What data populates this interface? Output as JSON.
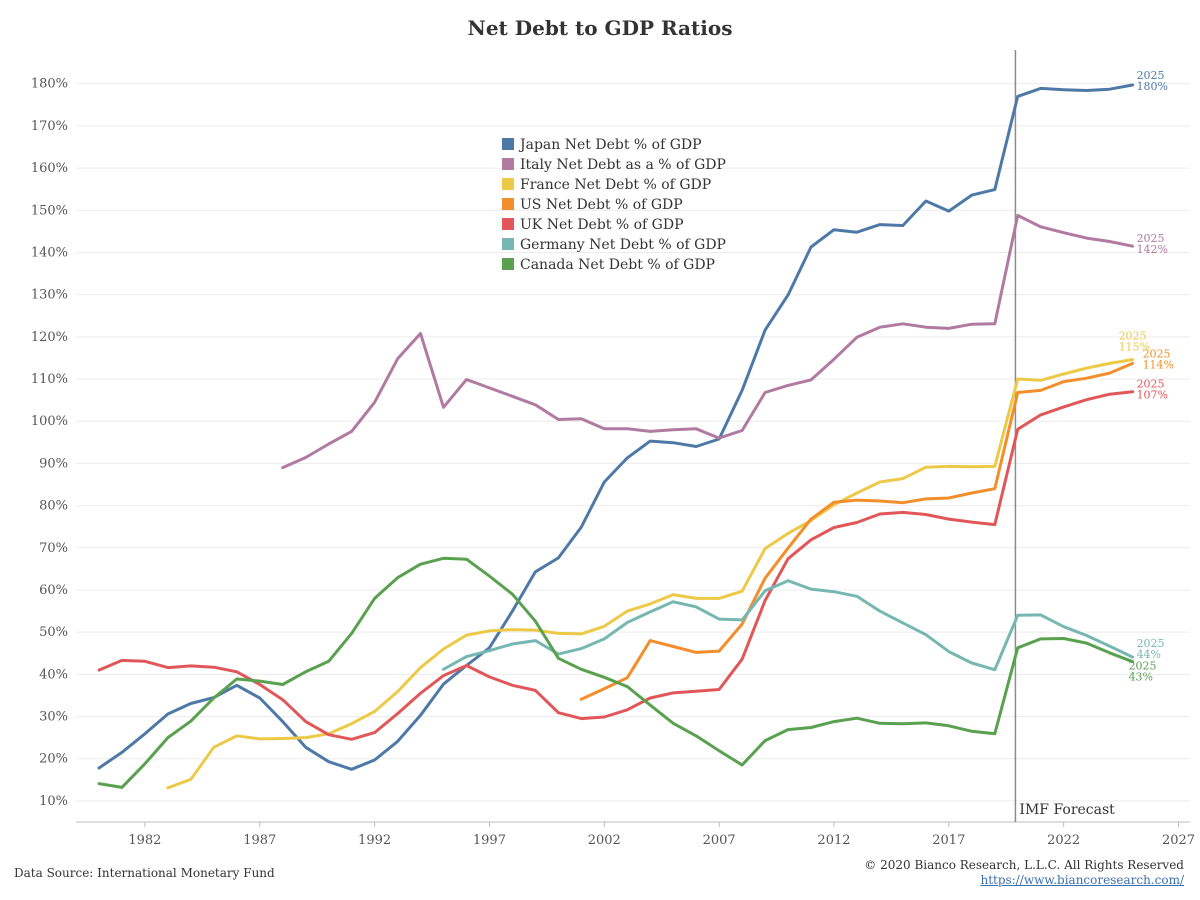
{
  "chart_data": {
    "type": "line",
    "title": "Net Debt to GDP Ratios",
    "xlim": [
      1979,
      2027.5
    ],
    "ylim": [
      5,
      188
    ],
    "y_ticks": [
      10,
      20,
      30,
      40,
      50,
      60,
      70,
      80,
      90,
      100,
      110,
      120,
      130,
      140,
      150,
      160,
      170,
      180
    ],
    "y_tick_labels": [
      "10%",
      "20%",
      "30%",
      "40%",
      "50%",
      "60%",
      "70%",
      "80%",
      "90%",
      "100%",
      "110%",
      "120%",
      "130%",
      "140%",
      "150%",
      "160%",
      "170%",
      "180%"
    ],
    "x_ticks": [
      1982,
      1987,
      1992,
      1997,
      2002,
      2007,
      2012,
      2017,
      2022,
      2027
    ],
    "x_tick_labels": [
      "1982",
      "1987",
      "1992",
      "1997",
      "2002",
      "2007",
      "2012",
      "2017",
      "2022",
      "2027"
    ],
    "grid": "horizontal",
    "legend_position": "top-center",
    "forecast_line_x": 2019.9,
    "forecast_label": "IMF Forecast",
    "series": [
      {
        "name": "Japan Net Debt % of GDP",
        "color": "#4e79a7",
        "end_year": "2025",
        "end_label": "180%",
        "data": [
          [
            1980,
            17.8
          ],
          [
            1981,
            21.5
          ],
          [
            1982,
            25.9
          ],
          [
            1983,
            30.6
          ],
          [
            1984,
            33.1
          ],
          [
            1985,
            34.5
          ],
          [
            1986,
            37.4
          ],
          [
            1987,
            34.4
          ],
          [
            1988,
            28.8
          ],
          [
            1989,
            22.7
          ],
          [
            1990,
            19.3
          ],
          [
            1991,
            17.5
          ],
          [
            1992,
            19.7
          ],
          [
            1993,
            24.1
          ],
          [
            1994,
            30.3
          ],
          [
            1995,
            37.7
          ],
          [
            1996,
            42.1
          ],
          [
            1997,
            46.3
          ],
          [
            1998,
            55.0
          ],
          [
            1999,
            64.3
          ],
          [
            2000,
            67.6
          ],
          [
            2001,
            74.9
          ],
          [
            2002,
            85.6
          ],
          [
            2003,
            91.3
          ],
          [
            2004,
            95.3
          ],
          [
            2005,
            94.9
          ],
          [
            2006,
            94.0
          ],
          [
            2007,
            95.8
          ],
          [
            2008,
            107.3
          ],
          [
            2009,
            121.6
          ],
          [
            2010,
            129.9
          ],
          [
            2011,
            141.3
          ],
          [
            2012,
            145.4
          ],
          [
            2013,
            144.8
          ],
          [
            2014,
            146.6
          ],
          [
            2015,
            146.4
          ],
          [
            2016,
            152.2
          ],
          [
            2017,
            149.8
          ],
          [
            2018,
            153.6
          ],
          [
            2019,
            154.9
          ],
          [
            2020,
            177.0
          ],
          [
            2021,
            178.9
          ],
          [
            2022,
            178.6
          ],
          [
            2023,
            178.4
          ],
          [
            2024,
            178.7
          ],
          [
            2025,
            179.7
          ]
        ]
      },
      {
        "name": "Italy Net Debt as a % of GDP",
        "color": "#b07aa1",
        "end_year": "2025",
        "end_label": "142%",
        "data": [
          [
            1988,
            89.0
          ],
          [
            1989,
            91.4
          ],
          [
            1990,
            94.6
          ],
          [
            1991,
            97.6
          ],
          [
            1992,
            104.5
          ],
          [
            1993,
            114.8
          ],
          [
            1994,
            120.8
          ],
          [
            1995,
            103.3
          ],
          [
            1996,
            109.9
          ],
          [
            1997,
            107.9
          ],
          [
            1998,
            105.9
          ],
          [
            1999,
            103.9
          ],
          [
            2000,
            100.4
          ],
          [
            2001,
            100.6
          ],
          [
            2002,
            98.2
          ],
          [
            2003,
            98.2
          ],
          [
            2004,
            97.6
          ],
          [
            2005,
            98.0
          ],
          [
            2006,
            98.2
          ],
          [
            2007,
            96.0
          ],
          [
            2008,
            97.8
          ],
          [
            2009,
            106.8
          ],
          [
            2010,
            108.5
          ],
          [
            2011,
            109.8
          ],
          [
            2012,
            114.7
          ],
          [
            2013,
            119.9
          ],
          [
            2014,
            122.3
          ],
          [
            2015,
            123.1
          ],
          [
            2016,
            122.3
          ],
          [
            2017,
            122.0
          ],
          [
            2018,
            123.0
          ],
          [
            2019,
            123.1
          ],
          [
            2020,
            148.8
          ],
          [
            2021,
            146.1
          ],
          [
            2022,
            144.7
          ],
          [
            2023,
            143.4
          ],
          [
            2024,
            142.6
          ],
          [
            2025,
            141.5
          ]
        ]
      },
      {
        "name": "France Net Debt % of GDP",
        "color": "#edc948",
        "end_year": "2025",
        "end_label": "115%",
        "data": [
          [
            1983,
            13.1
          ],
          [
            1984,
            15.1
          ],
          [
            1985,
            22.7
          ],
          [
            1986,
            25.4
          ],
          [
            1987,
            24.7
          ],
          [
            1988,
            24.8
          ],
          [
            1989,
            25.0
          ],
          [
            1990,
            25.9
          ],
          [
            1991,
            28.3
          ],
          [
            1992,
            31.2
          ],
          [
            1993,
            35.9
          ],
          [
            1994,
            41.6
          ],
          [
            1995,
            46.0
          ],
          [
            1996,
            49.3
          ],
          [
            1997,
            50.3
          ],
          [
            1998,
            50.6
          ],
          [
            1999,
            50.5
          ],
          [
            2000,
            49.7
          ],
          [
            2001,
            49.6
          ],
          [
            2002,
            51.4
          ],
          [
            2003,
            55.0
          ],
          [
            2004,
            56.7
          ],
          [
            2005,
            58.9
          ],
          [
            2006,
            58.0
          ],
          [
            2007,
            58.0
          ],
          [
            2008,
            59.7
          ],
          [
            2009,
            69.8
          ],
          [
            2010,
            73.4
          ],
          [
            2011,
            76.5
          ],
          [
            2012,
            80.2
          ],
          [
            2013,
            83.0
          ],
          [
            2014,
            85.6
          ],
          [
            2015,
            86.4
          ],
          [
            2016,
            89.1
          ],
          [
            2017,
            89.3
          ],
          [
            2018,
            89.2
          ],
          [
            2019,
            89.3
          ],
          [
            2020,
            110.0
          ],
          [
            2021,
            109.7
          ],
          [
            2022,
            111.2
          ],
          [
            2023,
            112.6
          ],
          [
            2024,
            113.7
          ],
          [
            2025,
            114.6
          ]
        ]
      },
      {
        "name": "US Net Debt % of GDP",
        "color": "#f28e2b",
        "end_year": "2025",
        "end_label": "114%",
        "data": [
          [
            2001,
            34.1
          ],
          [
            2002,
            36.6
          ],
          [
            2003,
            39.2
          ],
          [
            2004,
            48.0
          ],
          [
            2005,
            46.6
          ],
          [
            2006,
            45.2
          ],
          [
            2007,
            45.5
          ],
          [
            2008,
            51.9
          ],
          [
            2009,
            62.8
          ],
          [
            2010,
            69.9
          ],
          [
            2011,
            76.8
          ],
          [
            2012,
            80.8
          ],
          [
            2013,
            81.3
          ],
          [
            2014,
            81.1
          ],
          [
            2015,
            80.7
          ],
          [
            2016,
            81.6
          ],
          [
            2017,
            81.8
          ],
          [
            2018,
            83.0
          ],
          [
            2019,
            84.0
          ],
          [
            2020,
            106.8
          ],
          [
            2021,
            107.3
          ],
          [
            2022,
            109.4
          ],
          [
            2023,
            110.2
          ],
          [
            2024,
            111.4
          ],
          [
            2025,
            113.7
          ]
        ]
      },
      {
        "name": "UK Net Debt % of GDP",
        "color": "#e15759",
        "end_year": "2025",
        "end_label": "107%",
        "data": [
          [
            1980,
            41.0
          ],
          [
            1981,
            43.3
          ],
          [
            1982,
            43.1
          ],
          [
            1983,
            41.6
          ],
          [
            1984,
            42.0
          ],
          [
            1985,
            41.7
          ],
          [
            1986,
            40.6
          ],
          [
            1987,
            37.6
          ],
          [
            1988,
            34.0
          ],
          [
            1989,
            28.8
          ],
          [
            1990,
            25.7
          ],
          [
            1991,
            24.6
          ],
          [
            1992,
            26.2
          ],
          [
            1993,
            30.7
          ],
          [
            1994,
            35.5
          ],
          [
            1995,
            39.7
          ],
          [
            1996,
            42.1
          ],
          [
            1997,
            39.4
          ],
          [
            1998,
            37.4
          ],
          [
            1999,
            36.2
          ],
          [
            2000,
            30.9
          ],
          [
            2001,
            29.5
          ],
          [
            2002,
            29.9
          ],
          [
            2003,
            31.6
          ],
          [
            2004,
            34.4
          ],
          [
            2005,
            35.6
          ],
          [
            2006,
            36.0
          ],
          [
            2007,
            36.4
          ],
          [
            2008,
            43.6
          ],
          [
            2009,
            57.5
          ],
          [
            2010,
            67.4
          ],
          [
            2011,
            71.9
          ],
          [
            2012,
            74.8
          ],
          [
            2013,
            76.0
          ],
          [
            2014,
            78.0
          ],
          [
            2015,
            78.4
          ],
          [
            2016,
            77.9
          ],
          [
            2017,
            76.8
          ],
          [
            2018,
            76.1
          ],
          [
            2019,
            75.5
          ],
          [
            2020,
            98.1
          ],
          [
            2021,
            101.5
          ],
          [
            2022,
            103.4
          ],
          [
            2023,
            105.1
          ],
          [
            2024,
            106.4
          ],
          [
            2025,
            107.0
          ]
        ]
      },
      {
        "name": "Germany Net Debt % of GDP",
        "color": "#76b7b2",
        "end_year": "2025",
        "end_label": "44%",
        "data": [
          [
            1995,
            41.2
          ],
          [
            1996,
            44.2
          ],
          [
            1997,
            45.6
          ],
          [
            1998,
            47.2
          ],
          [
            1999,
            48.0
          ],
          [
            2000,
            44.8
          ],
          [
            2001,
            46.1
          ],
          [
            2002,
            48.4
          ],
          [
            2003,
            52.3
          ],
          [
            2004,
            54.8
          ],
          [
            2005,
            57.2
          ],
          [
            2006,
            56.0
          ],
          [
            2007,
            53.1
          ],
          [
            2008,
            52.9
          ],
          [
            2009,
            59.8
          ],
          [
            2010,
            62.2
          ],
          [
            2011,
            60.2
          ],
          [
            2012,
            59.6
          ],
          [
            2013,
            58.5
          ],
          [
            2014,
            55.0
          ],
          [
            2015,
            52.2
          ],
          [
            2016,
            49.4
          ],
          [
            2017,
            45.4
          ],
          [
            2018,
            42.7
          ],
          [
            2019,
            41.1
          ],
          [
            2020,
            54.0
          ],
          [
            2021,
            54.1
          ],
          [
            2022,
            51.3
          ],
          [
            2023,
            49.2
          ],
          [
            2024,
            46.7
          ],
          [
            2025,
            44.1
          ]
        ]
      },
      {
        "name": "Canada Net Debt % of GDP",
        "color": "#59a14f",
        "end_year": "2025",
        "end_label": "43%",
        "data": [
          [
            1980,
            14.1
          ],
          [
            1981,
            13.2
          ],
          [
            1982,
            18.8
          ],
          [
            1983,
            25.0
          ],
          [
            1984,
            28.9
          ],
          [
            1985,
            34.4
          ],
          [
            1986,
            38.9
          ],
          [
            1987,
            38.4
          ],
          [
            1988,
            37.6
          ],
          [
            1989,
            40.6
          ],
          [
            1990,
            43.1
          ],
          [
            1991,
            49.7
          ],
          [
            1992,
            58.0
          ],
          [
            1993,
            62.9
          ],
          [
            1994,
            66.1
          ],
          [
            1995,
            67.5
          ],
          [
            1996,
            67.3
          ],
          [
            1997,
            63.3
          ],
          [
            1998,
            59.0
          ],
          [
            1999,
            52.6
          ],
          [
            2000,
            43.8
          ],
          [
            2001,
            41.2
          ],
          [
            2002,
            39.3
          ],
          [
            2003,
            37.1
          ],
          [
            2004,
            32.7
          ],
          [
            2005,
            28.4
          ],
          [
            2006,
            25.4
          ],
          [
            2007,
            21.9
          ],
          [
            2008,
            18.5
          ],
          [
            2009,
            24.3
          ],
          [
            2010,
            26.9
          ],
          [
            2011,
            27.4
          ],
          [
            2012,
            28.8
          ],
          [
            2013,
            29.6
          ],
          [
            2014,
            28.4
          ],
          [
            2015,
            28.3
          ],
          [
            2016,
            28.5
          ],
          [
            2017,
            27.8
          ],
          [
            2018,
            26.5
          ],
          [
            2019,
            25.9
          ],
          [
            2020,
            46.3
          ],
          [
            2021,
            48.4
          ],
          [
            2022,
            48.5
          ],
          [
            2023,
            47.4
          ],
          [
            2024,
            45.1
          ],
          [
            2025,
            43.0
          ]
        ]
      }
    ]
  },
  "footer": {
    "source": "Data Source: International Monetary Fund",
    "copyright": "© 2020 Bianco Research, L.L.C. All Rights Reserved",
    "url": "https://www.biancoresearch.com/"
  }
}
